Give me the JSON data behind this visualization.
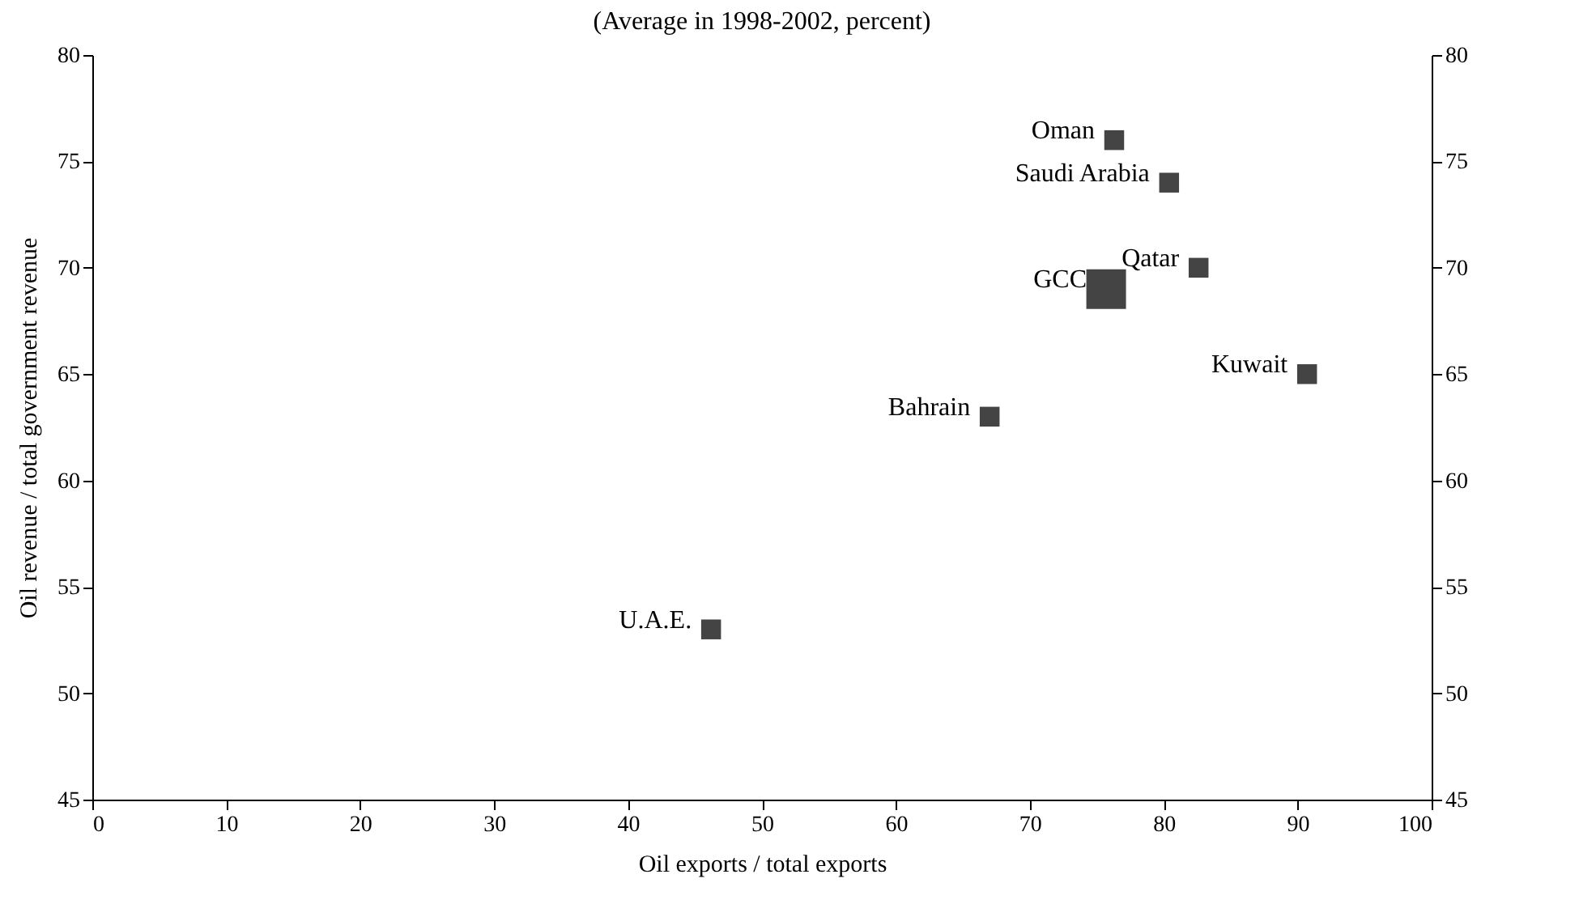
{
  "chart_data": {
    "type": "bubble",
    "subtitle": "(Average in 1998-2002, percent)",
    "xlabel": "Oil exports / total exports",
    "ylabel": "Oil revenue / total government revenue",
    "x": [
      76.3,
      80.4,
      82.6,
      75.7,
      90.7,
      67,
      46.2
    ],
    "values": [
      76,
      74,
      70,
      69,
      65,
      63,
      53
    ],
    "sizes": [
      0.25,
      0.25,
      0.25,
      1,
      0.25,
      0.25,
      0.25
    ],
    "color": "#444444",
    "marker": "square",
    "xlim": [
      0,
      100
    ],
    "xticks": [
      0,
      10,
      20,
      30,
      40,
      50,
      60,
      70,
      80,
      90,
      100
    ],
    "ylim": [
      45,
      80
    ],
    "yticks": [
      45,
      50,
      55,
      60,
      65,
      70,
      75,
      80
    ],
    "y2lim": [
      45,
      80
    ],
    "y2ticks": [
      45,
      50,
      55,
      60,
      65,
      70,
      75,
      80
    ],
    "grid": false,
    "annotations": [
      {
        "text": "Oman",
        "x": 76.3,
        "y": 76
      },
      {
        "text": "Saudi Arabia",
        "x": 80.4,
        "y": 74
      },
      {
        "text": "Qatar",
        "x": 82.6,
        "y": 70
      },
      {
        "text": "GCC",
        "x": 75.7,
        "y": 69
      },
      {
        "text": "Kuwait",
        "x": 90.7,
        "y": 65
      },
      {
        "text": "Bahrain",
        "x": 67,
        "y": 63
      },
      {
        "text": "U.A.E.",
        "x": 46.2,
        "y": 53
      }
    ]
  }
}
